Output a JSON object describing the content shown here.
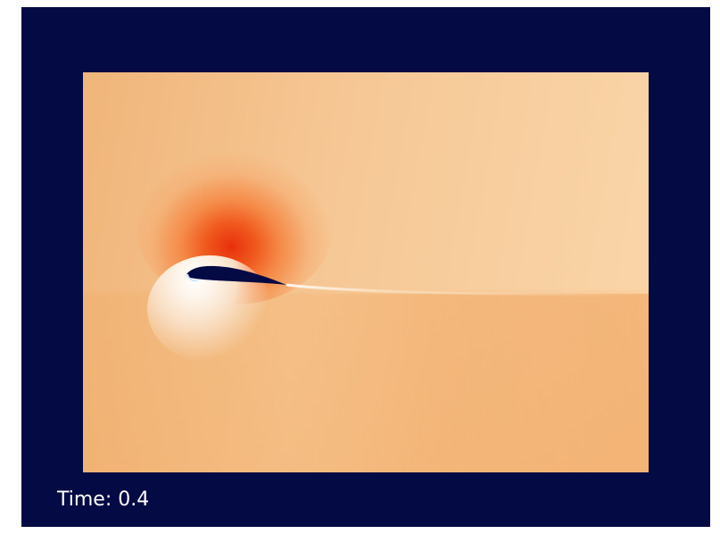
{
  "overlay": {
    "time_label": "Time: 0.4"
  },
  "colors": {
    "background": "#040a44",
    "field_base": "#f6c896",
    "high_value": "#e8300c",
    "low_value": "#ffffff",
    "airfoil": "#040a44"
  }
}
